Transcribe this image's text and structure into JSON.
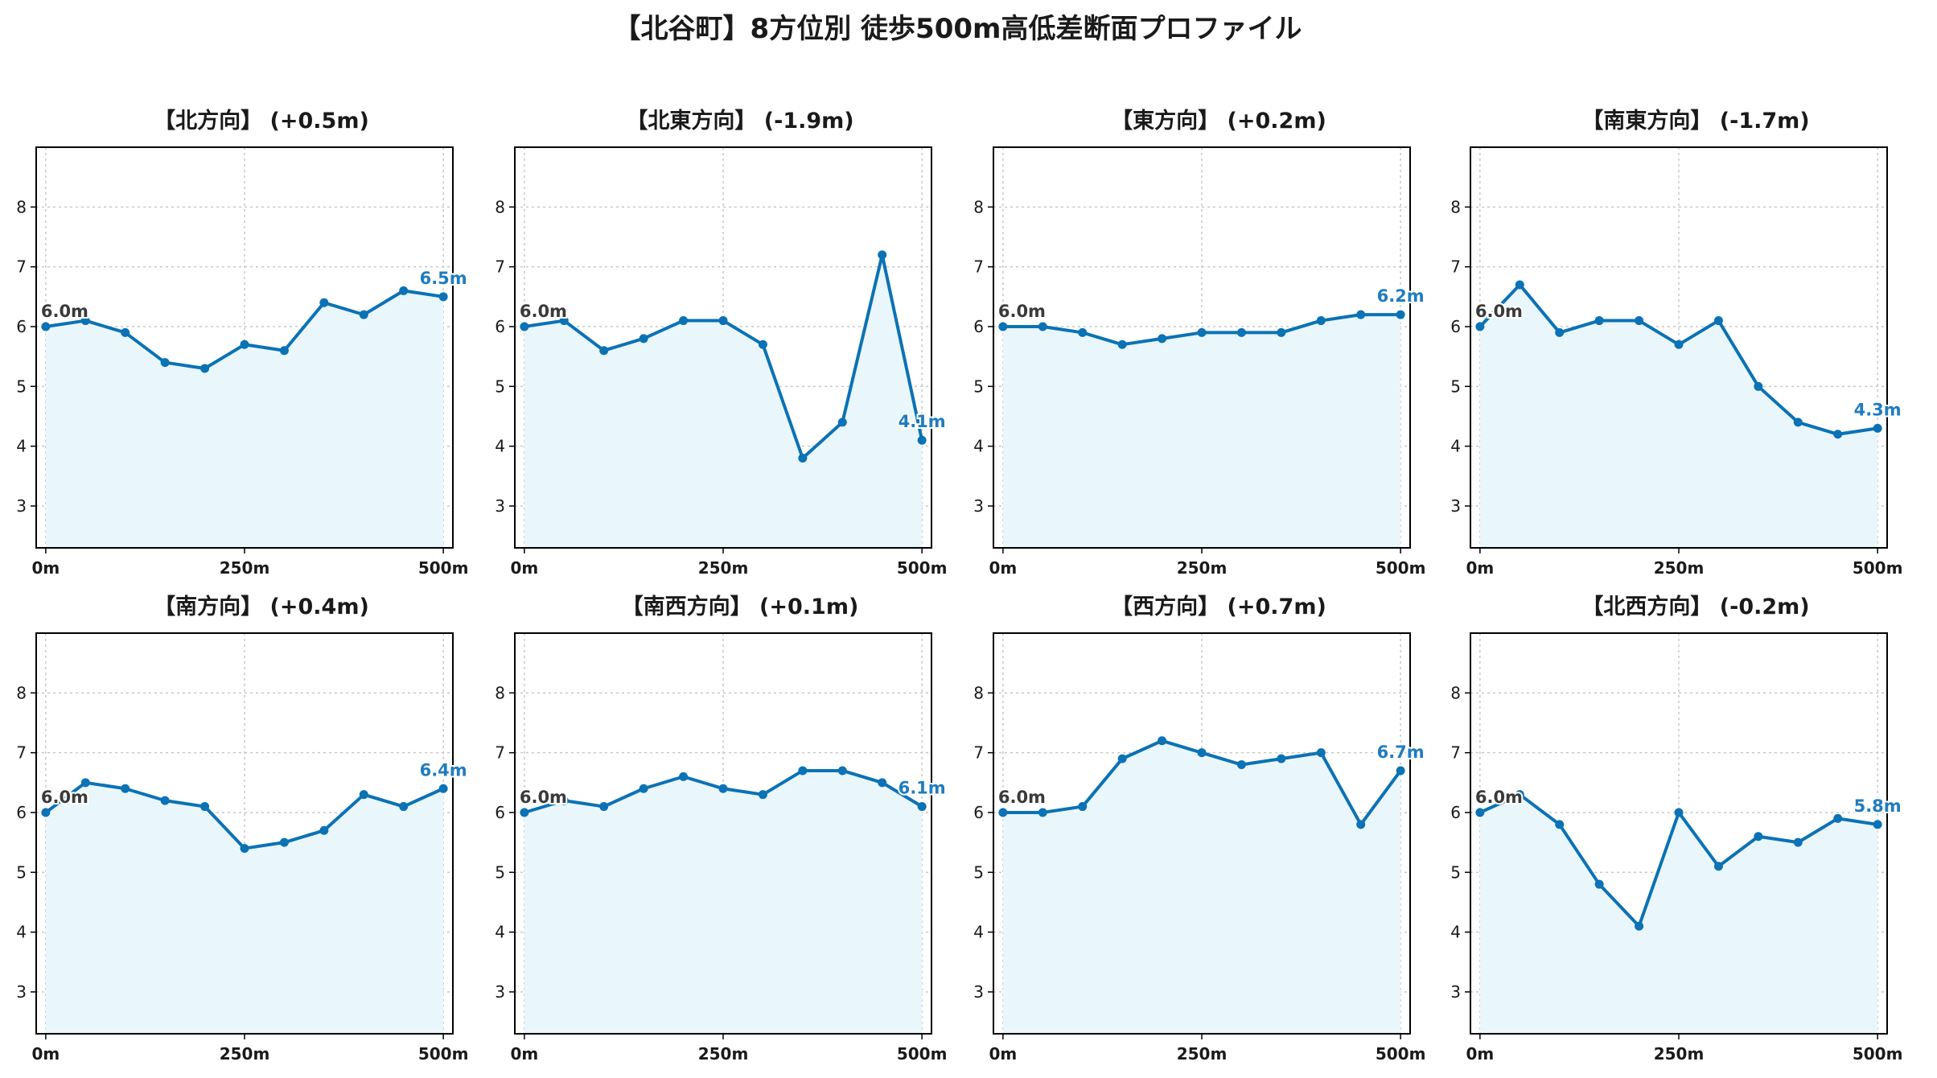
{
  "title": "【北谷町】8方位別 徒歩500m高低差断面プロファイル",
  "colors": {
    "line": "#0b72b5",
    "fill": "#e9f6fb",
    "end_label": "#1f7cc0",
    "start_label": "#3a3a3a",
    "grid": "#c8c8c8"
  },
  "chart_data": [
    {
      "type": "area",
      "title": "【北方向】 (+0.5m)",
      "x": [
        0,
        50,
        100,
        150,
        200,
        250,
        300,
        350,
        400,
        450,
        500
      ],
      "y": [
        6.0,
        6.1,
        5.9,
        5.4,
        5.3,
        5.7,
        5.6,
        6.4,
        6.2,
        6.6,
        6.5
      ],
      "xticks": [
        "0m",
        "250m",
        "500m"
      ],
      "xtick_values": [
        0,
        250,
        500
      ],
      "yticks": [
        3,
        4,
        5,
        6,
        7,
        8
      ],
      "ylim": [
        2.3,
        9.0
      ],
      "xlim": [
        -12,
        512
      ],
      "start_label": "6.0m",
      "end_label": "6.5m",
      "grid": true
    },
    {
      "type": "area",
      "title": "【北東方向】 (-1.9m)",
      "x": [
        0,
        50,
        100,
        150,
        200,
        250,
        300,
        350,
        400,
        450,
        500
      ],
      "y": [
        6.0,
        6.1,
        5.6,
        5.8,
        6.1,
        6.1,
        5.7,
        3.8,
        4.4,
        7.2,
        4.1
      ],
      "xticks": [
        "0m",
        "250m",
        "500m"
      ],
      "xtick_values": [
        0,
        250,
        500
      ],
      "yticks": [
        3,
        4,
        5,
        6,
        7,
        8
      ],
      "ylim": [
        2.3,
        9.0
      ],
      "xlim": [
        -12,
        512
      ],
      "start_label": "6.0m",
      "end_label": "4.1m",
      "grid": true
    },
    {
      "type": "area",
      "title": "【東方向】 (+0.2m)",
      "x": [
        0,
        50,
        100,
        150,
        200,
        250,
        300,
        350,
        400,
        450,
        500
      ],
      "y": [
        6.0,
        6.0,
        5.9,
        5.7,
        5.8,
        5.9,
        5.9,
        5.9,
        6.1,
        6.2,
        6.2
      ],
      "xticks": [
        "0m",
        "250m",
        "500m"
      ],
      "xtick_values": [
        0,
        250,
        500
      ],
      "yticks": [
        3,
        4,
        5,
        6,
        7,
        8
      ],
      "ylim": [
        2.3,
        9.0
      ],
      "xlim": [
        -12,
        512
      ],
      "start_label": "6.0m",
      "end_label": "6.2m",
      "grid": true
    },
    {
      "type": "area",
      "title": "【南東方向】 (-1.7m)",
      "x": [
        0,
        50,
        100,
        150,
        200,
        250,
        300,
        350,
        400,
        450,
        500
      ],
      "y": [
        6.0,
        6.7,
        5.9,
        6.1,
        6.1,
        5.7,
        6.1,
        5.0,
        4.4,
        4.2,
        4.3
      ],
      "xticks": [
        "0m",
        "250m",
        "500m"
      ],
      "xtick_values": [
        0,
        250,
        500
      ],
      "yticks": [
        3,
        4,
        5,
        6,
        7,
        8
      ],
      "ylim": [
        2.3,
        9.0
      ],
      "xlim": [
        -12,
        512
      ],
      "start_label": "6.0m",
      "end_label": "4.3m",
      "grid": true
    },
    {
      "type": "area",
      "title": "【南方向】 (+0.4m)",
      "x": [
        0,
        50,
        100,
        150,
        200,
        250,
        300,
        350,
        400,
        450,
        500
      ],
      "y": [
        6.0,
        6.5,
        6.4,
        6.2,
        6.1,
        5.4,
        5.5,
        5.7,
        6.3,
        6.1,
        6.4
      ],
      "xticks": [
        "0m",
        "250m",
        "500m"
      ],
      "xtick_values": [
        0,
        250,
        500
      ],
      "yticks": [
        3,
        4,
        5,
        6,
        7,
        8
      ],
      "ylim": [
        2.3,
        9.0
      ],
      "xlim": [
        -12,
        512
      ],
      "start_label": "6.0m",
      "end_label": "6.4m",
      "grid": true
    },
    {
      "type": "area",
      "title": "【南西方向】 (+0.1m)",
      "x": [
        0,
        50,
        100,
        150,
        200,
        250,
        300,
        350,
        400,
        450,
        500
      ],
      "y": [
        6.0,
        6.2,
        6.1,
        6.4,
        6.6,
        6.4,
        6.3,
        6.7,
        6.7,
        6.5,
        6.1
      ],
      "xticks": [
        "0m",
        "250m",
        "500m"
      ],
      "xtick_values": [
        0,
        250,
        500
      ],
      "yticks": [
        3,
        4,
        5,
        6,
        7,
        8
      ],
      "ylim": [
        2.3,
        9.0
      ],
      "xlim": [
        -12,
        512
      ],
      "start_label": "6.0m",
      "end_label": "6.1m",
      "grid": true
    },
    {
      "type": "area",
      "title": "【西方向】 (+0.7m)",
      "x": [
        0,
        50,
        100,
        150,
        200,
        250,
        300,
        350,
        400,
        450,
        500
      ],
      "y": [
        6.0,
        6.0,
        6.1,
        6.9,
        7.2,
        7.0,
        6.8,
        6.9,
        7.0,
        5.8,
        6.7
      ],
      "xticks": [
        "0m",
        "250m",
        "500m"
      ],
      "xtick_values": [
        0,
        250,
        500
      ],
      "yticks": [
        3,
        4,
        5,
        6,
        7,
        8
      ],
      "ylim": [
        2.3,
        9.0
      ],
      "xlim": [
        -12,
        512
      ],
      "start_label": "6.0m",
      "end_label": "6.7m",
      "grid": true
    },
    {
      "type": "area",
      "title": "【北西方向】 (-0.2m)",
      "x": [
        0,
        50,
        100,
        150,
        200,
        250,
        300,
        350,
        400,
        450,
        500
      ],
      "y": [
        6.0,
        6.3,
        5.8,
        4.8,
        4.1,
        6.0,
        5.1,
        5.6,
        5.5,
        5.9,
        5.8
      ],
      "xticks": [
        "0m",
        "250m",
        "500m"
      ],
      "xtick_values": [
        0,
        250,
        500
      ],
      "yticks": [
        3,
        4,
        5,
        6,
        7,
        8
      ],
      "ylim": [
        2.3,
        9.0
      ],
      "xlim": [
        -12,
        512
      ],
      "start_label": "6.0m",
      "end_label": "5.8m",
      "grid": true
    }
  ]
}
